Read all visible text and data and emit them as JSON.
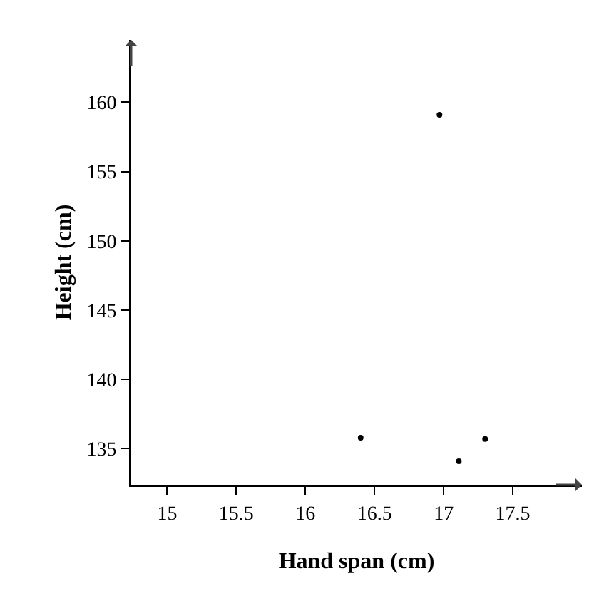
{
  "chart_data": {
    "type": "scatter",
    "xlabel": "Hand span (cm)",
    "ylabel": "Height (cm)",
    "x": [
      16.4,
      16.97,
      17.11,
      17.3
    ],
    "values": [
      135.8,
      159.1,
      134.1,
      135.7
    ],
    "color": "#000000",
    "marker": "circle",
    "grid": false,
    "xlim": [
      14.74,
      18.0
    ],
    "xticks": [
      15,
      15.5,
      16,
      16.5,
      17,
      17.5
    ],
    "ylim": [
      132.4,
      164.5
    ],
    "yticks": [
      135,
      140,
      145,
      150,
      155,
      160
    ]
  }
}
